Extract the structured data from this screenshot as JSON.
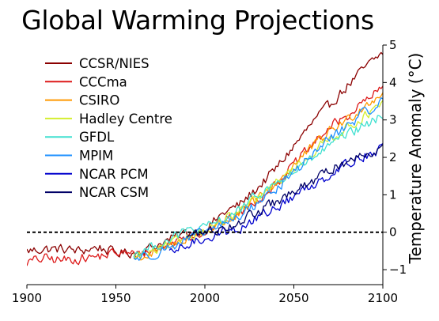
{
  "chart_data": {
    "type": "line",
    "title": "Global Warming Projections",
    "xlabel": "",
    "ylabel": "Temperature Anomaly (°C)",
    "xlim": [
      1900,
      2100
    ],
    "ylim": [
      -1.4,
      5
    ],
    "x_ticks": [
      1900,
      1950,
      2000,
      2050,
      2100
    ],
    "y_ticks": [
      -1,
      0,
      1,
      2,
      3,
      4,
      5
    ],
    "y_axis_side": "right",
    "reference_line": {
      "y": 0,
      "style": "dashed",
      "color": "#000000"
    },
    "legend_position": "top-left",
    "grid": false,
    "series": [
      {
        "name": "CCSR/NIES",
        "color": "#8b0000",
        "x": [
          1890,
          1900,
          1910,
          1920,
          1930,
          1940,
          1950,
          1960,
          1970,
          1980,
          1990,
          2000,
          2010,
          2020,
          2030,
          2040,
          2050,
          2060,
          2070,
          2080,
          2090,
          2100
        ],
        "y": [
          -0.5,
          -0.5,
          -0.45,
          -0.45,
          -0.5,
          -0.4,
          -0.55,
          -0.55,
          -0.4,
          -0.2,
          0.0,
          0.05,
          0.5,
          0.75,
          1.2,
          1.7,
          2.3,
          2.9,
          3.4,
          3.9,
          4.4,
          4.8
        ]
      },
      {
        "name": "CCCma",
        "color": "#dd1a1a",
        "x": [
          1890,
          1900,
          1910,
          1920,
          1930,
          1940,
          1950,
          1960,
          1970,
          1980,
          1990,
          2000,
          2010,
          2020,
          2030,
          2040,
          2050,
          2060,
          2070,
          2080,
          2090,
          2100
        ],
        "y": [
          -0.85,
          -0.8,
          -0.7,
          -0.75,
          -0.7,
          -0.65,
          -0.55,
          -0.6,
          -0.5,
          -0.3,
          -0.1,
          0.0,
          0.3,
          0.5,
          0.9,
          1.3,
          1.8,
          2.3,
          2.8,
          3.1,
          3.5,
          3.85
        ]
      },
      {
        "name": "CSIRO",
        "color": "#ff9900",
        "x": [
          1960,
          1970,
          1980,
          1990,
          2000,
          2010,
          2020,
          2030,
          2040,
          2050,
          2060,
          2070,
          2080,
          2090,
          2100
        ],
        "y": [
          -0.7,
          -0.6,
          -0.4,
          -0.15,
          0.0,
          0.25,
          0.5,
          0.9,
          1.3,
          1.8,
          2.25,
          2.7,
          3.0,
          3.4,
          3.75
        ]
      },
      {
        "name": "Hadley Centre",
        "color": "#d4ee30",
        "x": [
          1960,
          1970,
          1980,
          1990,
          2000,
          2010,
          2020,
          2030,
          2040,
          2050,
          2060,
          2070,
          2080,
          2090,
          2100
        ],
        "y": [
          -0.65,
          -0.55,
          -0.35,
          -0.1,
          0.05,
          0.3,
          0.55,
          0.9,
          1.3,
          1.7,
          2.1,
          2.5,
          2.8,
          3.1,
          3.4
        ]
      },
      {
        "name": "GFDL",
        "color": "#40e0d0",
        "x": [
          1960,
          1970,
          1980,
          1990,
          2000,
          2010,
          2020,
          2030,
          2040,
          2050,
          2060,
          2070,
          2080,
          2090,
          2100
        ],
        "y": [
          -0.6,
          -0.4,
          -0.2,
          0.05,
          0.1,
          0.35,
          0.6,
          1.0,
          1.3,
          1.6,
          1.95,
          2.3,
          2.6,
          2.85,
          3.1
        ]
      },
      {
        "name": "MPIM",
        "color": "#1e90ff",
        "x": [
          1960,
          1970,
          1980,
          1990,
          2000,
          2010,
          2020,
          2030,
          2040,
          2050,
          2060,
          2070,
          2080,
          2090,
          2100
        ],
        "y": [
          -0.7,
          -0.6,
          -0.4,
          -0.2,
          0.0,
          0.2,
          0.45,
          0.8,
          1.15,
          1.6,
          2.05,
          2.5,
          2.85,
          3.2,
          3.5
        ]
      },
      {
        "name": "NCAR PCM",
        "color": "#0000cd",
        "x": [
          1980,
          1990,
          2000,
          2010,
          2020,
          2030,
          2040,
          2050,
          2060,
          2070,
          2080,
          2090,
          2100
        ],
        "y": [
          -0.6,
          -0.35,
          -0.15,
          0.0,
          0.1,
          0.4,
          0.65,
          0.95,
          1.25,
          1.55,
          1.85,
          2.05,
          2.25
        ]
      },
      {
        "name": "NCAR CSM",
        "color": "#000066",
        "x": [
          1990,
          2000,
          2010,
          2020,
          2030,
          2040,
          2050,
          2060,
          2070,
          2080,
          2090,
          2100
        ],
        "y": [
          -0.1,
          0.0,
          0.1,
          0.3,
          0.55,
          0.8,
          1.05,
          1.35,
          1.65,
          1.9,
          2.1,
          2.3
        ]
      }
    ]
  }
}
